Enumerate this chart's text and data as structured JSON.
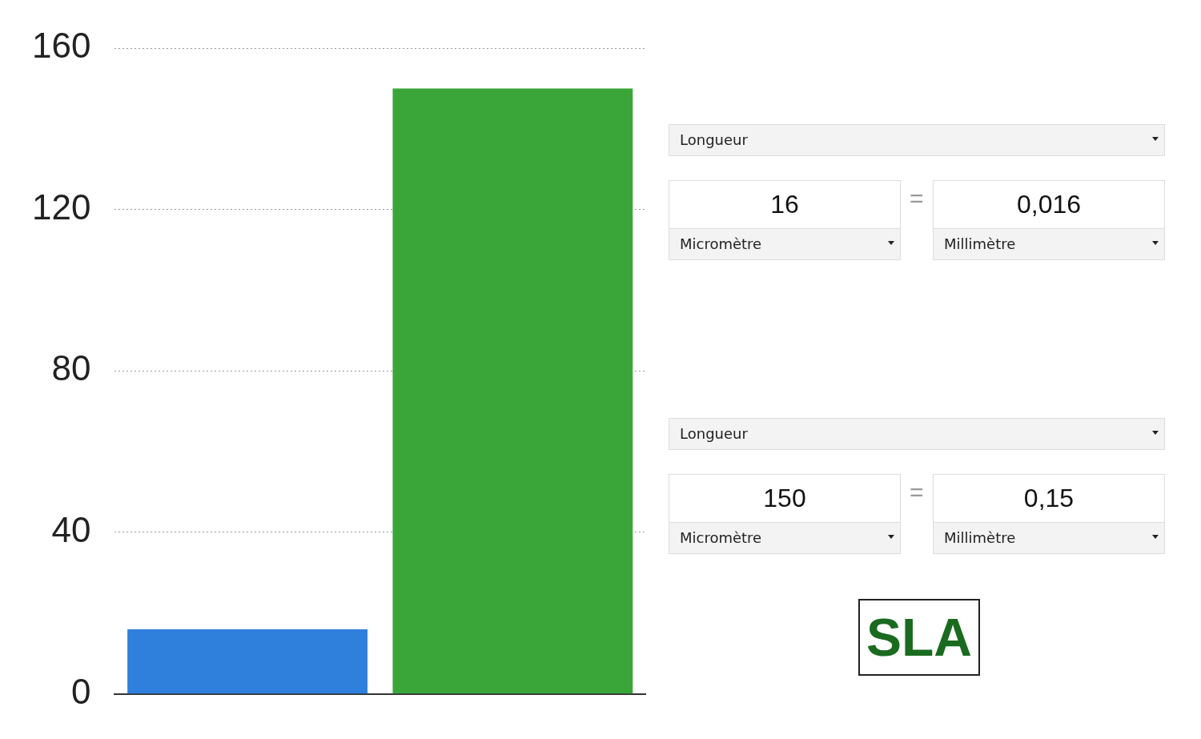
{
  "chart_data": [
    {
      "type": "bar",
      "categories": [
        null,
        null
      ],
      "colors": [
        "#2f7fdc",
        "#3aa63a"
      ],
      "values": [
        16,
        150
      ],
      "ylim": [
        0,
        160
      ],
      "yticks": [
        0,
        40,
        80,
        120,
        160
      ],
      "grid": "y",
      "tick_labels": "y"
    },
    {
      "type": "other",
      "annotations": [
        "Longueur",
        "16",
        "=",
        "0,016",
        "Micromètre",
        "Millimètre",
        "Longueur",
        "150",
        "=",
        "0,15",
        "Micromètre",
        "Millimètre",
        "SLA"
      ]
    }
  ]
}
